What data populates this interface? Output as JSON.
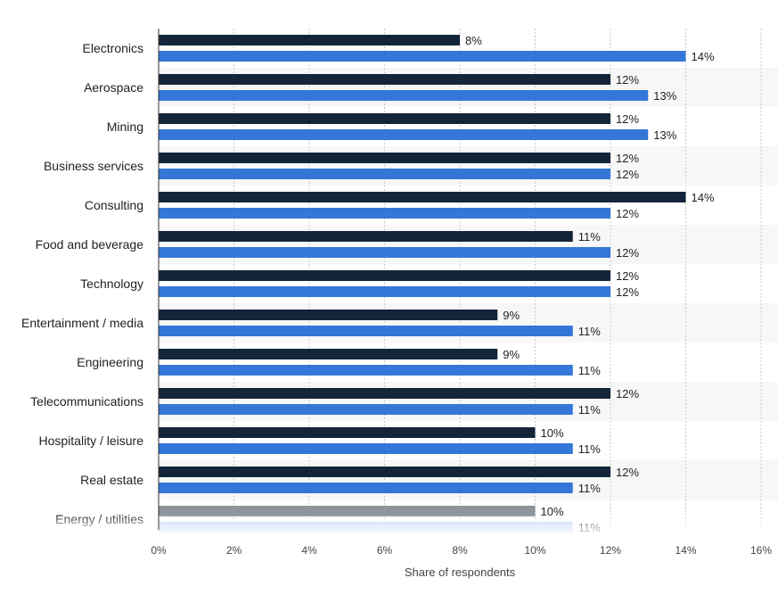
{
  "chart_data": {
    "type": "bar",
    "orientation": "horizontal",
    "categories": [
      "Electronics",
      "Aerospace",
      "Mining",
      "Business services",
      "Consulting",
      "Food and beverage",
      "Technology",
      "Entertainment / media",
      "Engineering",
      "Telecommunications",
      "Hospitality / leisure",
      "Real estate",
      "Energy / utilities"
    ],
    "series": [
      {
        "color": "#14253a",
        "values": [
          8,
          12,
          12,
          12,
          14,
          11,
          12,
          9,
          9,
          12,
          10,
          12,
          10
        ]
      },
      {
        "color": "#3477d8",
        "values": [
          14,
          13,
          13,
          12,
          12,
          12,
          12,
          11,
          11,
          11,
          11,
          11,
          11
        ]
      }
    ],
    "value_labels": [
      [
        "8%",
        "12%",
        "12%",
        "12%",
        "14%",
        "11%",
        "12%",
        "9%",
        "9%",
        "12%",
        "10%",
        "12%",
        "10%"
      ],
      [
        "14%",
        "13%",
        "13%",
        "12%",
        "12%",
        "12%",
        "12%",
        "11%",
        "11%",
        "11%",
        "11%",
        "11%",
        "11%"
      ]
    ],
    "xlim": [
      0,
      16
    ],
    "xticks": [
      "0%",
      "2%",
      "4%",
      "6%",
      "8%",
      "10%",
      "12%",
      "14%",
      "16%"
    ],
    "xlabel": "Share of respondents",
    "ylabel": "",
    "title": "",
    "grid": true,
    "faded_last_row": true
  }
}
